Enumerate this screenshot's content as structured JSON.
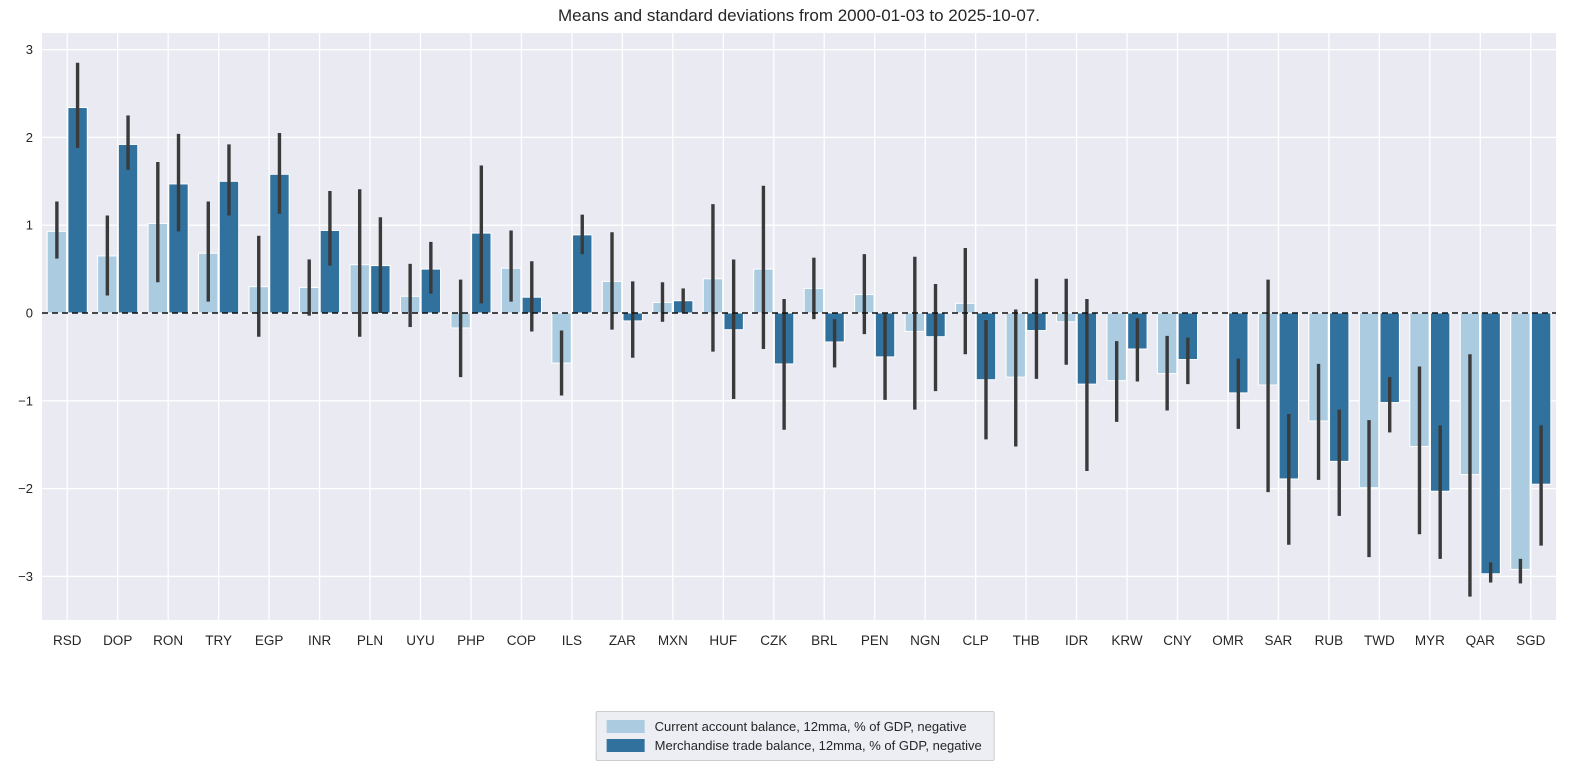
{
  "chart_data": {
    "type": "bar",
    "title": "Means and standard deviations from 2000-01-03 to 2025-10-07.",
    "categories": [
      "RSD",
      "DOP",
      "RON",
      "TRY",
      "EGP",
      "INR",
      "PLN",
      "UYU",
      "PHP",
      "COP",
      "ILS",
      "ZAR",
      "MXN",
      "HUF",
      "CZK",
      "BRL",
      "PEN",
      "NGN",
      "CLP",
      "THB",
      "IDR",
      "KRW",
      "CNY",
      "OMR",
      "SAR",
      "RUB",
      "TWD",
      "MYR",
      "QAR",
      "SGD"
    ],
    "series": [
      {
        "name": "Current account balance, 12mma, % of GDP, negative",
        "color": "#AACBE0",
        "values": [
          0.93,
          0.65,
          1.02,
          0.68,
          0.3,
          0.29,
          0.55,
          0.19,
          -0.17,
          0.51,
          -0.57,
          0.36,
          0.12,
          0.39,
          0.5,
          0.28,
          0.21,
          -0.21,
          0.11,
          -0.73,
          -0.1,
          -0.77,
          -0.69,
          null,
          -0.82,
          -1.23,
          -1.99,
          -1.52,
          -1.84,
          -2.92
        ],
        "err_low": [
          0.62,
          0.2,
          0.35,
          0.13,
          -0.27,
          -0.03,
          -0.27,
          -0.16,
          -0.73,
          0.13,
          -0.94,
          -0.19,
          -0.1,
          -0.44,
          -0.41,
          -0.07,
          -0.24,
          -1.1,
          -0.47,
          -1.52,
          -0.59,
          -1.24,
          -1.11,
          null,
          -2.04,
          -1.9,
          -2.78,
          -2.52,
          -3.23,
          -3.08
        ],
        "err_high": [
          1.27,
          1.11,
          1.72,
          1.27,
          0.88,
          0.61,
          1.41,
          0.56,
          0.38,
          0.94,
          -0.2,
          0.92,
          0.35,
          1.24,
          1.45,
          0.63,
          0.67,
          0.64,
          0.74,
          0.04,
          0.39,
          -0.32,
          -0.26,
          null,
          0.38,
          -0.58,
          -1.22,
          -0.61,
          -0.47,
          -2.8
        ]
      },
      {
        "name": "Merchandise trade balance, 12mma, % of GDP, negative",
        "color": "#31719E",
        "values": [
          2.34,
          1.92,
          1.47,
          1.5,
          1.58,
          0.94,
          0.54,
          0.5,
          0.91,
          0.18,
          0.89,
          -0.09,
          0.14,
          -0.19,
          -0.58,
          -0.33,
          -0.5,
          -0.27,
          -0.76,
          -0.2,
          -0.81,
          -0.41,
          -0.53,
          -0.91,
          -1.89,
          -1.69,
          -1.02,
          -2.03,
          -2.97,
          -1.95
        ],
        "err_low": [
          1.88,
          1.63,
          0.93,
          1.11,
          1.13,
          0.54,
          0.0,
          0.22,
          0.11,
          -0.21,
          0.67,
          -0.51,
          0.01,
          -0.98,
          -1.33,
          -0.62,
          -0.99,
          -0.89,
          -1.44,
          -0.75,
          -1.8,
          -0.78,
          -0.81,
          -1.32,
          -2.64,
          -2.31,
          -1.36,
          -2.8,
          -3.07,
          -2.65
        ],
        "err_high": [
          2.85,
          2.25,
          2.04,
          1.92,
          2.05,
          1.39,
          1.09,
          0.81,
          1.68,
          0.59,
          1.12,
          0.36,
          0.28,
          0.61,
          0.16,
          -0.07,
          -0.01,
          0.33,
          -0.08,
          0.39,
          0.16,
          -0.06,
          -0.28,
          -0.52,
          -1.15,
          -1.1,
          -0.73,
          -1.28,
          -2.84,
          -1.28
        ]
      }
    ],
    "yticks": [
      3,
      2,
      1,
      0,
      -1,
      -2,
      -3
    ],
    "ylim": [
      -3.5,
      3.19
    ],
    "grid": true,
    "zero_line": "dashed",
    "legend_position": "bottom-center",
    "plot_bg": "#EAEAF2",
    "grid_color": "#FFFFFF",
    "errorbar_color": "#3A3A3A",
    "text_color": "#262626"
  }
}
